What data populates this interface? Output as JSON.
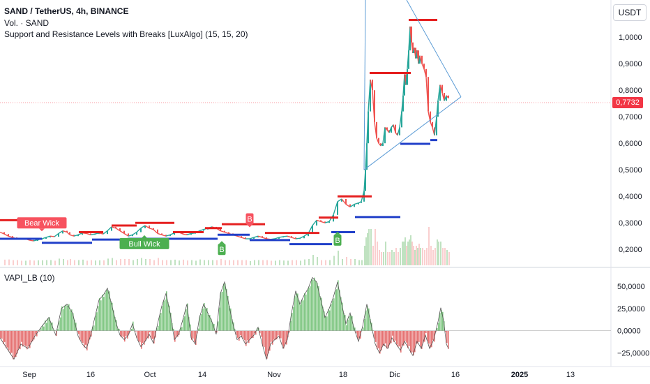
{
  "header": {
    "symbol_line": "SAND / TetherUS, 4h, BINANCE",
    "volume_line": "Vol. · SAND",
    "indicator_line": "Support and Resistance Levels with Breaks [LuxAlgo] (15, 15, 20)",
    "currency": "USDT"
  },
  "oscillator": {
    "title": "VAPI_LB (10)"
  },
  "last_price": "0,7732",
  "colors": {
    "resistance": "#e51f1f",
    "support": "#2140c9",
    "bull": "#4caf50",
    "bear": "#ef5350",
    "trend": "#5b9bd5",
    "wick_tag": "#f7525f",
    "break_tag": "#4caf50"
  },
  "chart_data": {
    "type": "line",
    "y_axis": {
      "ticks": [
        0.2,
        0.3,
        0.4,
        0.5,
        0.6,
        0.7,
        0.8,
        0.9,
        1.0
      ],
      "labels": [
        "0,2000",
        "0,3000",
        "0,4000",
        "0,5000",
        "0,6000",
        "0,7000",
        "0,8000",
        "0,9000",
        "1,0000"
      ],
      "range": [
        0.14,
        1.14
      ]
    },
    "x_axis": {
      "labels": [
        "Sep",
        "16",
        "Oct",
        "14",
        "Nov",
        "18",
        "Dic",
        "16",
        "2025",
        "13"
      ]
    },
    "price_path": [
      [
        0,
        0.265
      ],
      [
        6,
        0.258
      ],
      [
        12,
        0.25
      ],
      [
        18,
        0.245
      ],
      [
        24,
        0.24
      ],
      [
        30,
        0.238
      ],
      [
        36,
        0.24
      ],
      [
        42,
        0.235
      ],
      [
        48,
        0.232
      ],
      [
        54,
        0.236
      ],
      [
        60,
        0.24
      ],
      [
        66,
        0.245
      ],
      [
        72,
        0.25
      ],
      [
        78,
        0.248
      ],
      [
        84,
        0.26
      ],
      [
        90,
        0.27
      ],
      [
        96,
        0.265
      ],
      [
        100,
        0.255
      ],
      [
        106,
        0.25
      ],
      [
        112,
        0.255
      ],
      [
        118,
        0.262
      ],
      [
        124,
        0.26
      ],
      [
        130,
        0.255
      ],
      [
        136,
        0.258
      ],
      [
        142,
        0.262
      ],
      [
        148,
        0.258
      ],
      [
        154,
        0.27
      ],
      [
        160,
        0.285
      ],
      [
        166,
        0.28
      ],
      [
        172,
        0.27
      ],
      [
        178,
        0.26
      ],
      [
        184,
        0.25
      ],
      [
        190,
        0.255
      ],
      [
        196,
        0.265
      ],
      [
        202,
        0.28
      ],
      [
        208,
        0.29
      ],
      [
        214,
        0.28
      ],
      [
        220,
        0.275
      ],
      [
        226,
        0.26
      ],
      [
        232,
        0.255
      ],
      [
        238,
        0.25
      ],
      [
        244,
        0.255
      ],
      [
        250,
        0.262
      ],
      [
        256,
        0.265
      ],
      [
        262,
        0.258
      ],
      [
        268,
        0.255
      ],
      [
        274,
        0.26
      ],
      [
        280,
        0.262
      ],
      [
        286,
        0.27
      ],
      [
        292,
        0.275
      ],
      [
        298,
        0.28
      ],
      [
        304,
        0.285
      ],
      [
        310,
        0.28
      ],
      [
        316,
        0.27
      ],
      [
        322,
        0.265
      ],
      [
        328,
        0.26
      ],
      [
        334,
        0.255
      ],
      [
        340,
        0.25
      ],
      [
        346,
        0.245
      ],
      [
        352,
        0.24
      ],
      [
        358,
        0.24
      ],
      [
        364,
        0.245
      ],
      [
        370,
        0.25
      ],
      [
        376,
        0.245
      ],
      [
        382,
        0.24
      ],
      [
        388,
        0.238
      ],
      [
        394,
        0.24
      ],
      [
        400,
        0.245
      ],
      [
        406,
        0.248
      ],
      [
        412,
        0.25
      ],
      [
        418,
        0.245
      ],
      [
        424,
        0.24
      ],
      [
        430,
        0.242
      ],
      [
        436,
        0.25
      ],
      [
        442,
        0.26
      ],
      [
        448,
        0.29
      ],
      [
        454,
        0.31
      ],
      [
        460,
        0.305
      ],
      [
        466,
        0.3
      ],
      [
        472,
        0.305
      ],
      [
        478,
        0.33
      ],
      [
        484,
        0.38
      ],
      [
        490,
        0.39
      ],
      [
        496,
        0.37
      ],
      [
        502,
        0.36
      ],
      [
        508,
        0.37
      ],
      [
        514,
        0.375
      ],
      [
        518,
        0.38
      ],
      [
        522,
        0.42
      ],
      [
        524,
        0.5
      ],
      [
        526,
        0.6
      ],
      [
        528,
        0.72
      ],
      [
        531,
        0.84
      ],
      [
        534,
        0.8
      ],
      [
        537,
        0.68
      ],
      [
        540,
        0.62
      ],
      [
        543,
        0.6
      ],
      [
        546,
        0.59
      ],
      [
        549,
        0.6
      ],
      [
        552,
        0.66
      ],
      [
        555,
        0.65
      ],
      [
        558,
        0.64
      ],
      [
        561,
        0.66
      ],
      [
        564,
        0.67
      ],
      [
        567,
        0.64
      ],
      [
        570,
        0.63
      ],
      [
        573,
        0.66
      ],
      [
        576,
        0.72
      ],
      [
        578,
        0.78
      ],
      [
        580,
        0.86
      ],
      [
        582,
        0.82
      ],
      [
        584,
        0.88
      ],
      [
        586,
        0.95
      ],
      [
        588,
        1.04
      ],
      [
        590,
        0.98
      ],
      [
        592,
        0.94
      ],
      [
        594,
        0.96
      ],
      [
        596,
        0.92
      ],
      [
        598,
        0.95
      ],
      [
        600,
        0.9
      ],
      [
        602,
        0.93
      ],
      [
        605,
        0.9
      ],
      [
        608,
        0.88
      ],
      [
        611,
        0.85
      ],
      [
        614,
        0.72
      ],
      [
        617,
        0.68
      ],
      [
        620,
        0.66
      ],
      [
        623,
        0.63
      ],
      [
        626,
        0.7
      ],
      [
        628,
        0.76
      ],
      [
        631,
        0.82
      ],
      [
        634,
        0.79
      ],
      [
        637,
        0.76
      ],
      [
        640,
        0.78
      ],
      [
        643,
        0.77
      ]
    ],
    "resistance_levels": [
      {
        "x1": 0,
        "x2": 86,
        "y": 0.31
      },
      {
        "x1": 113,
        "x2": 148,
        "y": 0.265
      },
      {
        "x1": 160,
        "x2": 196,
        "y": 0.29
      },
      {
        "x1": 194,
        "x2": 250,
        "y": 0.3
      },
      {
        "x1": 248,
        "x2": 292,
        "y": 0.265
      },
      {
        "x1": 294,
        "x2": 318,
        "y": 0.28
      },
      {
        "x1": 318,
        "x2": 380,
        "y": 0.295
      },
      {
        "x1": 380,
        "x2": 458,
        "y": 0.262
      },
      {
        "x1": 457,
        "x2": 485,
        "y": 0.32
      },
      {
        "x1": 484,
        "x2": 533,
        "y": 0.4
      },
      {
        "x1": 530,
        "x2": 589,
        "y": 0.865
      },
      {
        "x1": 586,
        "x2": 627,
        "y": 1.065
      }
    ],
    "support_levels": [
      {
        "x1": 0,
        "x2": 60,
        "y": 0.24
      },
      {
        "x1": 60,
        "x2": 132,
        "y": 0.225
      },
      {
        "x1": 132,
        "x2": 184,
        "y": 0.237
      },
      {
        "x1": 183,
        "x2": 248,
        "y": 0.24
      },
      {
        "x1": 248,
        "x2": 312,
        "y": 0.24
      },
      {
        "x1": 312,
        "x2": 358,
        "y": 0.255
      },
      {
        "x1": 358,
        "x2": 416,
        "y": 0.235
      },
      {
        "x1": 415,
        "x2": 476,
        "y": 0.22
      },
      {
        "x1": 475,
        "x2": 509,
        "y": 0.265
      },
      {
        "x1": 509,
        "x2": 574,
        "y": 0.322
      },
      {
        "x1": 574,
        "x2": 617,
        "y": 0.598
      },
      {
        "x1": 617,
        "x2": 627,
        "y": 0.612
      }
    ],
    "trendlines": [
      {
        "points": [
          [
            522,
            0.5
          ],
          [
            524,
            1.14
          ]
        ]
      },
      {
        "points": [
          [
            583,
            1.14
          ],
          [
            661,
            0.775
          ]
        ]
      },
      {
        "points": [
          [
            522,
            0.5
          ],
          [
            661,
            0.775
          ]
        ]
      }
    ],
    "annotations": [
      {
        "text": "Bear Wick",
        "x": 60,
        "y": 0.3,
        "kind": "bear"
      },
      {
        "text": "Bull Wick",
        "x": 207,
        "y": 0.222,
        "kind": "bull"
      },
      {
        "text": "B",
        "x": 358,
        "y": 0.315,
        "kind": "bear"
      },
      {
        "text": "B",
        "x": 318,
        "y": 0.2,
        "kind": "bull"
      },
      {
        "text": "B",
        "x": 484,
        "y": 0.235,
        "kind": "bull"
      }
    ],
    "oscillator": {
      "ticks": [
        -25000,
        0,
        25000,
        50000
      ],
      "labels": [
        "−25,0000",
        "0,0000",
        "25,0000",
        "50,0000"
      ],
      "range": [
        -38000,
        62000
      ],
      "segments": [
        [
          0,
          -8000
        ],
        [
          10,
          -20000
        ],
        [
          20,
          -32000
        ],
        [
          30,
          -15000
        ],
        [
          40,
          -20000
        ],
        [
          50,
          -6000
        ],
        [
          60,
          5000
        ],
        [
          70,
          15000
        ],
        [
          80,
          -5000
        ],
        [
          88,
          25000
        ],
        [
          96,
          30000
        ],
        [
          104,
          20000
        ],
        [
          112,
          -6000
        ],
        [
          118,
          -15000
        ],
        [
          124,
          -20000
        ],
        [
          130,
          -5000
        ],
        [
          136,
          15000
        ],
        [
          142,
          35000
        ],
        [
          148,
          40000
        ],
        [
          154,
          48000
        ],
        [
          160,
          30000
        ],
        [
          166,
          10000
        ],
        [
          172,
          -5000
        ],
        [
          178,
          -10000
        ],
        [
          184,
          -5000
        ],
        [
          190,
          8000
        ],
        [
          196,
          -8000
        ],
        [
          202,
          -18000
        ],
        [
          208,
          -12000
        ],
        [
          214,
          -4000
        ],
        [
          220,
          -14000
        ],
        [
          226,
          8000
        ],
        [
          232,
          28000
        ],
        [
          238,
          42000
        ],
        [
          244,
          20000
        ],
        [
          250,
          -10000
        ],
        [
          256,
          -4000
        ],
        [
          262,
          12000
        ],
        [
          268,
          30000
        ],
        [
          274,
          -8000
        ],
        [
          280,
          -15000
        ],
        [
          286,
          15000
        ],
        [
          292,
          30000
        ],
        [
          298,
          20000
        ],
        [
          304,
          10000
        ],
        [
          310,
          -4000
        ],
        [
          316,
          42000
        ],
        [
          322,
          55000
        ],
        [
          328,
          30000
        ],
        [
          334,
          8000
        ],
        [
          340,
          -10000
        ],
        [
          346,
          -6000
        ],
        [
          352,
          -15000
        ],
        [
          358,
          -10000
        ],
        [
          364,
          -5000
        ],
        [
          370,
          4000
        ],
        [
          376,
          -15000
        ],
        [
          382,
          -32000
        ],
        [
          388,
          -15000
        ],
        [
          394,
          -10000
        ],
        [
          400,
          -6000
        ],
        [
          406,
          -20000
        ],
        [
          412,
          -10000
        ],
        [
          418,
          20000
        ],
        [
          424,
          45000
        ],
        [
          430,
          30000
        ],
        [
          436,
          40000
        ],
        [
          442,
          48000
        ],
        [
          448,
          60000
        ],
        [
          454,
          55000
        ],
        [
          460,
          35000
        ],
        [
          466,
          15000
        ],
        [
          472,
          25000
        ],
        [
          478,
          38000
        ],
        [
          484,
          55000
        ],
        [
          490,
          30000
        ],
        [
          496,
          8000
        ],
        [
          502,
          20000
        ],
        [
          508,
          2000
        ],
        [
          514,
          -12000
        ],
        [
          520,
          5000
        ],
        [
          526,
          30000
        ],
        [
          532,
          8000
        ],
        [
          538,
          -15000
        ],
        [
          544,
          -25000
        ],
        [
          550,
          -15000
        ],
        [
          556,
          -20000
        ],
        [
          562,
          -8000
        ],
        [
          568,
          -15000
        ],
        [
          574,
          -22000
        ],
        [
          580,
          -12000
        ],
        [
          586,
          -20000
        ],
        [
          592,
          -28000
        ],
        [
          598,
          -12000
        ],
        [
          604,
          -20000
        ],
        [
          610,
          -5000
        ],
        [
          616,
          -20000
        ],
        [
          622,
          -10000
        ],
        [
          628,
          10000
        ],
        [
          632,
          26000
        ],
        [
          636,
          12000
        ],
        [
          640,
          -15000
        ],
        [
          643,
          -20000
        ]
      ]
    }
  }
}
